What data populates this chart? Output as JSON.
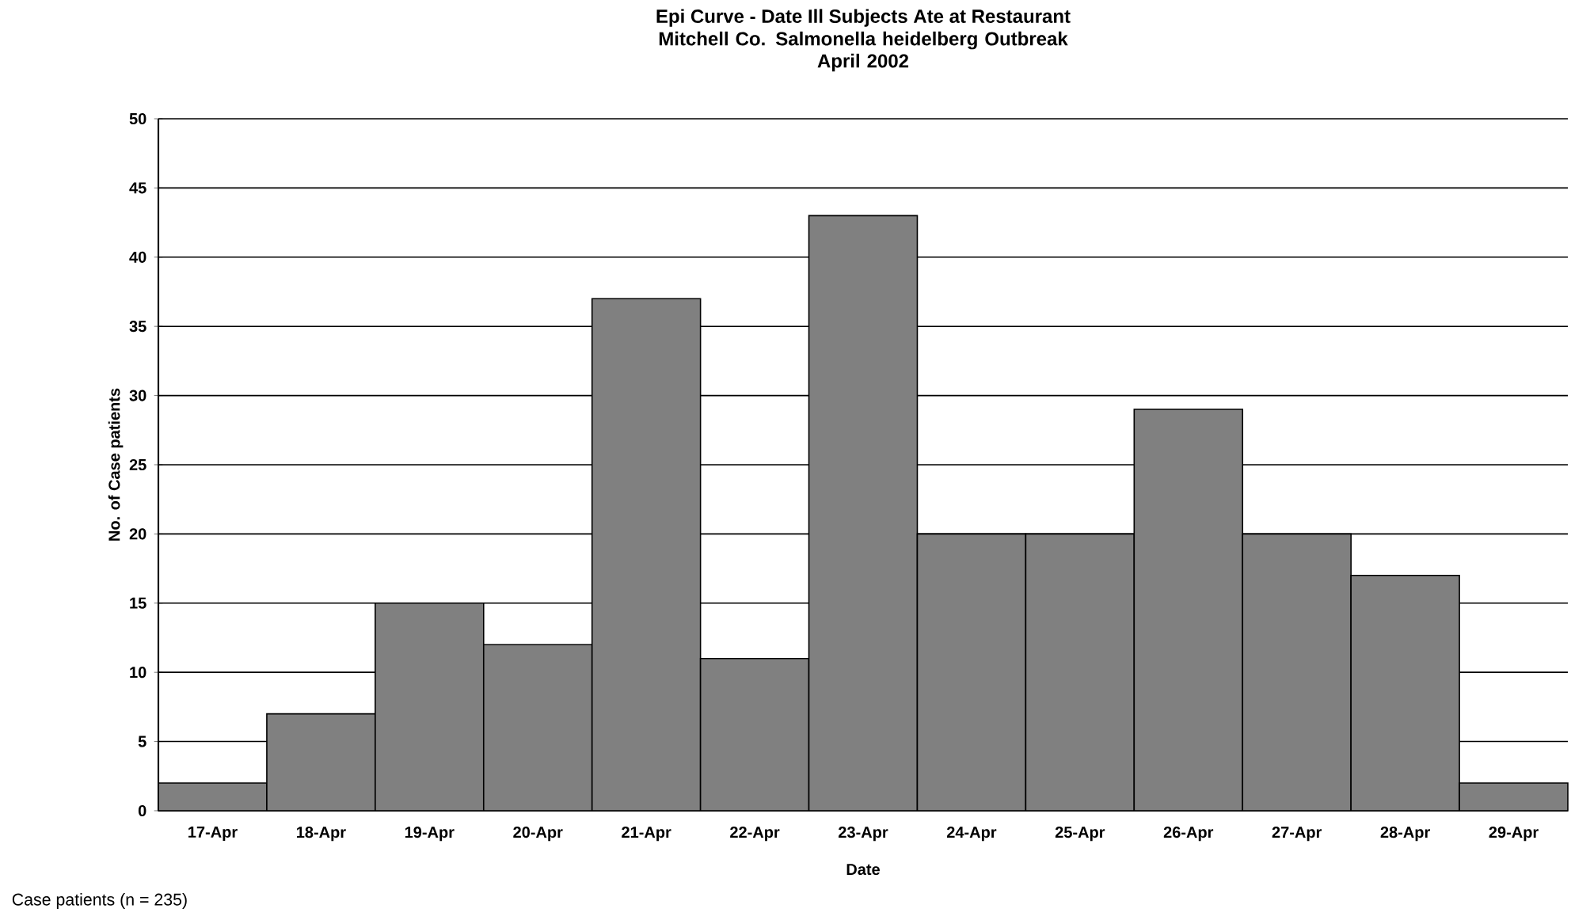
{
  "chart_data": {
    "type": "bar",
    "title": "Epi Curve - Date Ill Subjects Ate at Restaurant",
    "subtitle": "Mitchell Co. Salmonella heidelberg Outbreak\nApril 2002",
    "xlabel": "Date",
    "ylabel": "No. of Case patients",
    "categories": [
      "17-Apr",
      "18-Apr",
      "19-Apr",
      "20-Apr",
      "21-Apr",
      "22-Apr",
      "23-Apr",
      "24-Apr",
      "25-Apr",
      "26-Apr",
      "27-Apr",
      "28-Apr",
      "29-Apr"
    ],
    "values": [
      2,
      7,
      15,
      12,
      37,
      11,
      43,
      20,
      20,
      29,
      20,
      17,
      2
    ],
    "color": "#808080",
    "ylim": [
      0,
      50
    ],
    "yticks": [
      0,
      5,
      10,
      15,
      20,
      25,
      30,
      35,
      40,
      45,
      50
    ],
    "grid": "y",
    "annotations": [
      "Case patients (n = 235)"
    ]
  }
}
